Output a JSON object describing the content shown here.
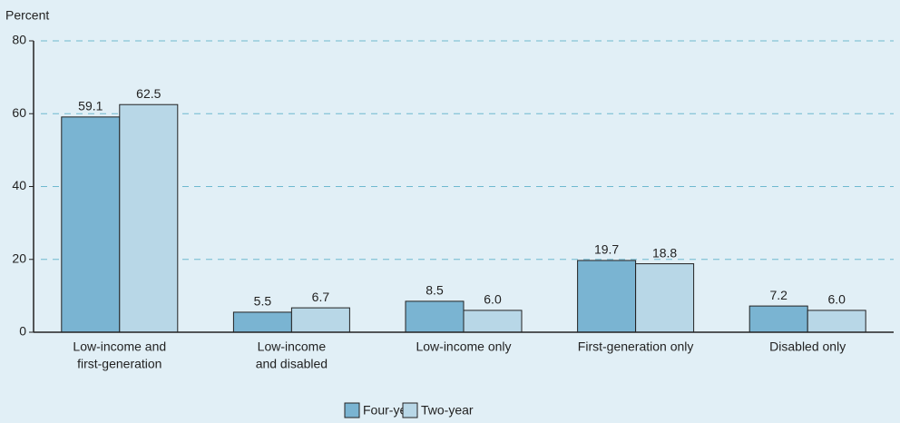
{
  "chart_data": {
    "type": "bar",
    "y_label": "Percent",
    "categories": [
      [
        "Low-income and",
        "first-generation"
      ],
      [
        "Low-income",
        "and disabled"
      ],
      [
        "Low-income only"
      ],
      [
        "First-generation only"
      ],
      [
        "Disabled only"
      ]
    ],
    "series": [
      {
        "name": "Four-year",
        "color": "#7ab4d2",
        "values": [
          59.1,
          5.5,
          8.5,
          19.7,
          7.2
        ],
        "value_labels": [
          "59.1",
          "5.5",
          "8.5",
          "19.7",
          "7.2"
        ]
      },
      {
        "name": "Two-year",
        "color": "#b8d7e7",
        "values": [
          62.5,
          6.7,
          6,
          18.8,
          6
        ],
        "value_labels": [
          "62.5",
          "6.7",
          "6.0",
          "18.8",
          "6.0"
        ]
      }
    ],
    "ylim": [
      0,
      80
    ],
    "yticks": [
      0,
      20,
      40,
      60,
      80
    ],
    "grid": true,
    "legend": "bottom"
  }
}
